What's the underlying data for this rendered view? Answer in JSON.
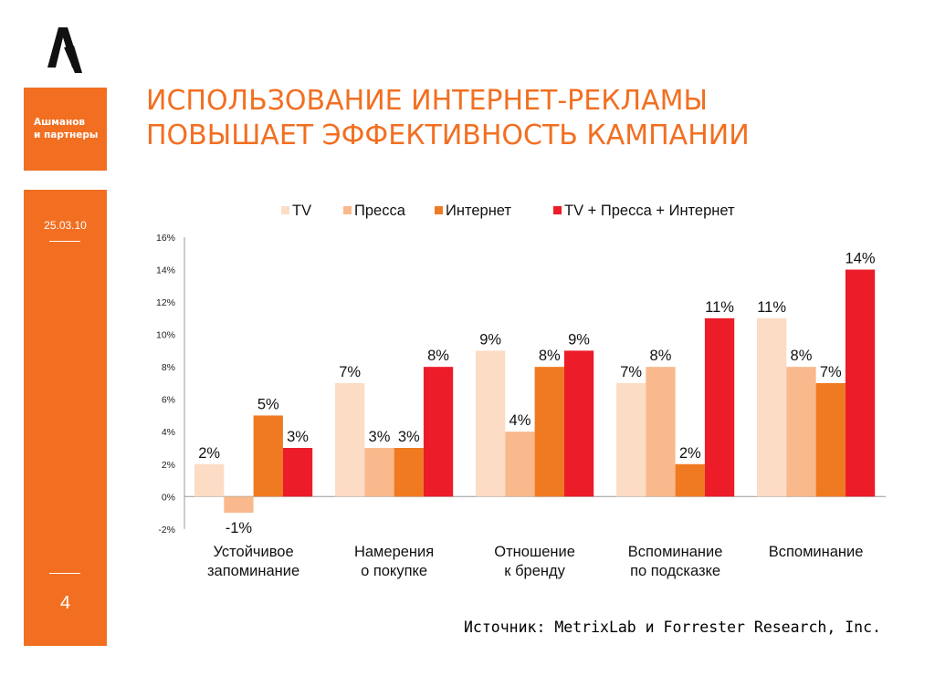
{
  "brand": {
    "line1": "Ашманов",
    "line2": "и партнеры"
  },
  "sidebar": {
    "date": "25.03.10",
    "page_number": "4"
  },
  "colors": {
    "accent": "#f26f21"
  },
  "title": {
    "line1": "ИСПОЛЬЗОВАНИЕ ИНТЕРНЕТ-РЕКЛАМЫ",
    "line2": "ПОВЫШАЕТ ЭФФЕКТИВНОСТЬ КАМПАНИИ"
  },
  "source": "Источник: MetrixLab и Forrester Research, Inc.",
  "chart_data": {
    "type": "bar",
    "title": "",
    "xlabel": "",
    "ylabel": "",
    "ylim": [
      -2,
      16
    ],
    "yticks": [
      "-2%",
      "0%",
      "2%",
      "4%",
      "6%",
      "8%",
      "10%",
      "12%",
      "14%",
      "16%"
    ],
    "grid": false,
    "legend_position": "top",
    "categories": [
      [
        "Устойчивое",
        "запоминание"
      ],
      [
        "Намерения",
        "о покупке"
      ],
      [
        "Отношение",
        "к бренду"
      ],
      [
        "Вспоминание",
        "по подсказке"
      ],
      [
        "Вспоминание"
      ]
    ],
    "series": [
      {
        "name": "TV",
        "color": "#fcdcc5",
        "values": [
          2,
          7,
          9,
          7,
          11
        ],
        "labels": [
          "2%",
          "7%",
          "9%",
          "7%",
          "11%"
        ]
      },
      {
        "name": "Пресса",
        "color": "#f9b98c",
        "values": [
          -1,
          3,
          4,
          8,
          8
        ],
        "labels": [
          "-1%",
          "3%",
          "4%",
          "8%",
          "8%"
        ]
      },
      {
        "name": "Интернет",
        "color": "#f07a21",
        "values": [
          5,
          3,
          8,
          2,
          7
        ],
        "labels": [
          "5%",
          "3%",
          "8%",
          "2%",
          "7%"
        ]
      },
      {
        "name": "TV + Пресса + Интернет",
        "color": "#ec1c28",
        "values": [
          3,
          8,
          9,
          11,
          14
        ],
        "labels": [
          "3%",
          "8%",
          "9%",
          "11%",
          "14%"
        ]
      }
    ]
  }
}
